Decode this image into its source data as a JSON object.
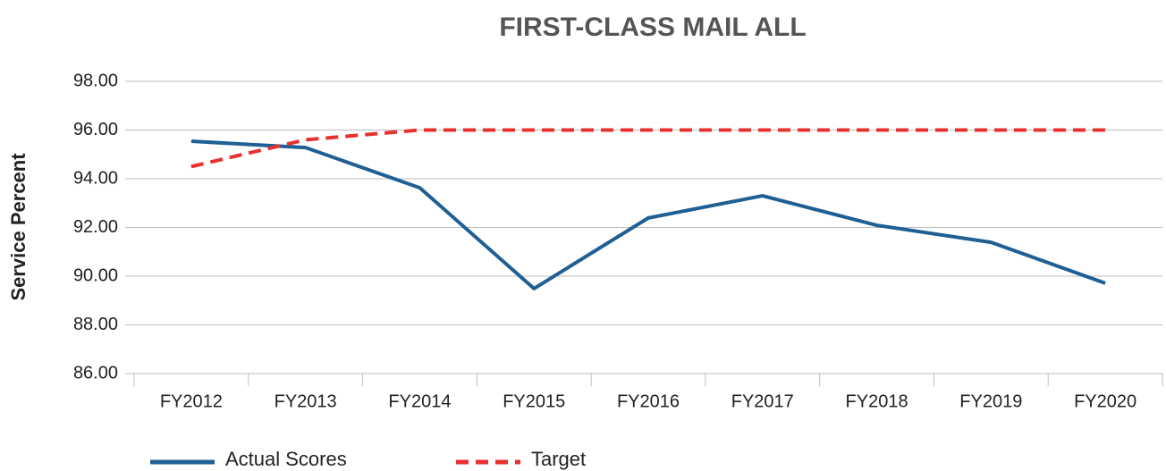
{
  "chart_data": {
    "type": "line",
    "title": "FIRST-CLASS MAIL ALL",
    "y_label": "Service Percent",
    "categories": [
      "FY2012",
      "FY2013",
      "FY2014",
      "FY2015",
      "FY2016",
      "FY2017",
      "FY2018",
      "FY2019",
      "FY2020"
    ],
    "series": [
      {
        "name": "Actual Scores",
        "color": "#1f5f94",
        "dash": false,
        "values": [
          95.54,
          95.28,
          93.63,
          89.49,
          92.39,
          93.3,
          92.09,
          91.39,
          89.71
        ]
      },
      {
        "name": "Target",
        "color": "#e8312f",
        "dash": true,
        "values": [
          94.5,
          95.6,
          96,
          96,
          96,
          96,
          96,
          96,
          96
        ]
      }
    ],
    "ylim": [
      86,
      98
    ],
    "yticks": [
      {
        "value": 86,
        "label": "86.00"
      },
      {
        "value": 88,
        "label": "88.00"
      },
      {
        "value": 90,
        "label": "90.00"
      },
      {
        "value": 92,
        "label": "92.00"
      },
      {
        "value": 94,
        "label": "94.00"
      },
      {
        "value": 96,
        "label": "96.00"
      },
      {
        "value": 98,
        "label": "98.00"
      }
    ],
    "grid": true,
    "legend": "bottom"
  }
}
